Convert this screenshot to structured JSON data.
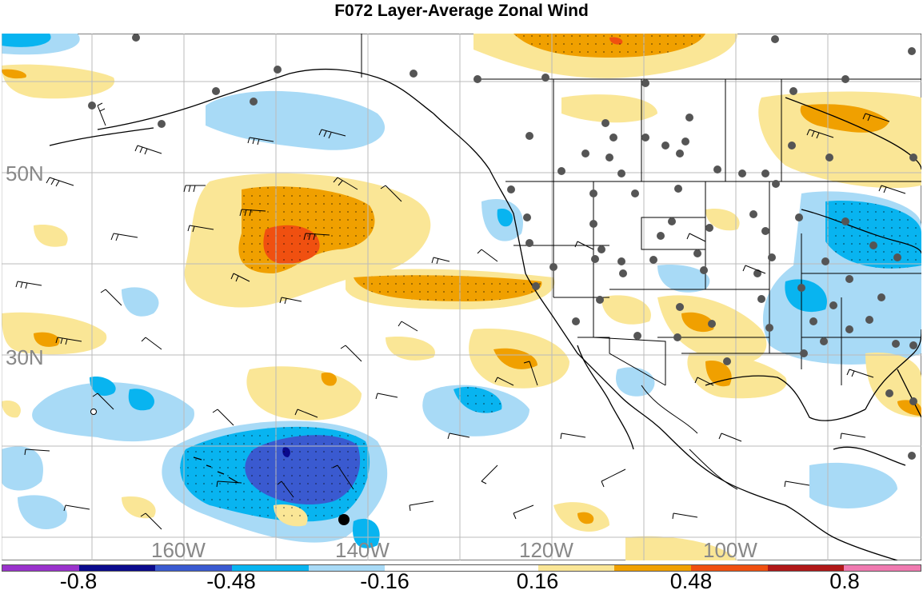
{
  "title": "F072 Layer-Average Zonal Wind",
  "map": {
    "lat_labels": [
      "50N",
      "30N"
    ],
    "lon_labels": [
      "160W",
      "140W",
      "120W",
      "100W"
    ],
    "contour_fill": "stippled",
    "station_markers": "gray dots",
    "wind_barbs": true
  },
  "colorbar": {
    "labels": [
      "-0.8",
      "-0.48",
      "-0.16",
      "0.16",
      "0.48",
      "0.8"
    ],
    "colors": [
      "#9a33cc",
      "#0a0a8c",
      "#3a5ad0",
      "#08b4f0",
      "#a8daf6",
      "#ffffff",
      "#ffffff",
      "#fae696",
      "#f0a000",
      "#f05010",
      "#b01818",
      "#f07ab0"
    ]
  },
  "colors": {
    "land_line": "#000000",
    "grid": "#bbbbbb",
    "label_gray": "#888888"
  }
}
